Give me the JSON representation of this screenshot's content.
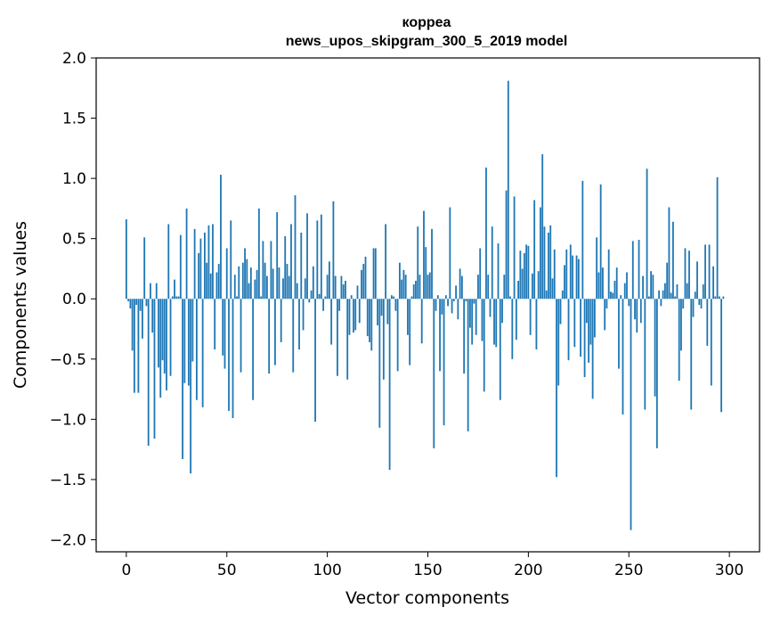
{
  "chart_data": {
    "type": "bar",
    "title": "коррea",
    "subtitle": "news_upos_skipgram_300_5_2019 model",
    "xlabel": "Vector components",
    "ylabel": "Components values",
    "xlim": [
      -15,
      315
    ],
    "ylim": [
      -2.1,
      2.0
    ],
    "xticks": [
      0,
      50,
      100,
      150,
      200,
      250,
      300
    ],
    "yticks": [
      2.0,
      1.5,
      1.0,
      0.5,
      0.0,
      -0.5,
      -1.0,
      -1.5,
      -2.0
    ],
    "ytick_labels": [
      "2.0",
      "1.5",
      "1.0",
      "0.5",
      "0.0",
      "−0.5",
      "−1.0",
      "−1.5",
      "−2.0"
    ],
    "bar_color": "#1f77b4",
    "values": [
      0.66,
      -0.02,
      -0.08,
      -0.43,
      -0.78,
      -0.05,
      -0.78,
      -0.1,
      -0.33,
      0.51,
      -0.06,
      -1.22,
      0.13,
      -0.28,
      -1.16,
      0.13,
      -0.57,
      -0.82,
      -0.51,
      -0.62,
      -0.76,
      0.62,
      -0.64,
      0.02,
      0.16,
      0.02,
      0.02,
      0.53,
      -1.33,
      -0.7,
      0.75,
      -0.72,
      -1.45,
      -0.52,
      0.58,
      -0.84,
      0.38,
      0.5,
      -0.9,
      0.55,
      0.3,
      0.61,
      0.21,
      0.62,
      -0.42,
      0.22,
      0.29,
      1.03,
      -0.47,
      -0.58,
      0.42,
      -0.93,
      0.65,
      -0.99,
      0.2,
      0.02,
      0.27,
      -0.61,
      0.3,
      0.42,
      0.33,
      0.13,
      0.26,
      -0.84,
      0.16,
      0.24,
      0.75,
      0.02,
      0.48,
      0.3,
      0.19,
      -0.62,
      0.48,
      0.25,
      -0.55,
      0.72,
      0.26,
      -0.36,
      0.17,
      0.52,
      0.29,
      0.19,
      0.62,
      -0.61,
      0.86,
      0.13,
      -0.42,
      0.55,
      -0.26,
      0.17,
      0.71,
      -0.03,
      0.07,
      0.27,
      -1.02,
      0.65,
      0.04,
      0.7,
      -0.1,
      0.02,
      0.2,
      0.31,
      -0.38,
      0.81,
      0.19,
      -0.64,
      -0.1,
      0.19,
      0.12,
      0.15,
      -0.67,
      -0.3,
      0.03,
      -0.28,
      -0.26,
      0.11,
      -0.2,
      0.24,
      0.29,
      0.35,
      -0.31,
      -0.36,
      -0.43,
      0.42,
      0.42,
      -0.22,
      -1.07,
      -0.14,
      -0.67,
      0.62,
      -0.21,
      -1.42,
      0.03,
      0.02,
      -0.1,
      -0.6,
      0.3,
      0.16,
      0.24,
      0.2,
      -0.3,
      -0.55,
      0.02,
      0.12,
      0.15,
      0.6,
      0.2,
      -0.37,
      0.73,
      0.43,
      0.2,
      0.22,
      0.58,
      -1.24,
      -0.1,
      0.03,
      -0.6,
      -0.13,
      -1.05,
      0.03,
      -0.06,
      0.76,
      -0.12,
      -0.02,
      0.11,
      -0.17,
      0.25,
      0.19,
      -0.62,
      -0.02,
      -1.1,
      -0.24,
      -0.38,
      -0.04,
      -0.3,
      0.2,
      0.42,
      -0.35,
      -0.77,
      1.09,
      0.2,
      -0.15,
      0.6,
      -0.38,
      -0.4,
      0.46,
      -0.84,
      -0.2,
      0.2,
      0.9,
      1.81,
      0.02,
      -0.5,
      0.85,
      -0.34,
      0.15,
      0.4,
      0.25,
      0.38,
      0.45,
      0.44,
      -0.3,
      0.21,
      0.82,
      -0.42,
      0.23,
      0.76,
      1.2,
      0.6,
      0.07,
      0.55,
      0.61,
      0.17,
      0.41,
      -1.48,
      -0.72,
      -0.21,
      0.07,
      0.28,
      0.41,
      -0.51,
      0.45,
      0.36,
      -0.4,
      0.36,
      0.33,
      -0.48,
      0.98,
      -0.65,
      -0.2,
      -0.53,
      -0.38,
      -0.83,
      -0.32,
      0.51,
      0.22,
      0.95,
      0.26,
      -0.26,
      -0.08,
      0.41,
      0.06,
      0.05,
      0.15,
      0.26,
      -0.58,
      0.03,
      -0.96,
      0.13,
      0.22,
      -0.06,
      -1.92,
      0.48,
      -0.17,
      -0.28,
      0.49,
      -0.2,
      0.19,
      -0.92,
      1.08,
      0.02,
      0.23,
      0.2,
      -0.81,
      -1.24,
      0.07,
      -0.06,
      0.07,
      0.13,
      0.3,
      0.76,
      0.05,
      0.64,
      0.02,
      0.12,
      -0.68,
      -0.43,
      -0.08,
      0.42,
      0.13,
      0.4,
      -0.92,
      -0.15,
      0.06,
      0.31,
      -0.05,
      -0.08,
      0.12,
      0.45,
      -0.39,
      0.45,
      -0.72,
      0.27,
      0.02,
      1.01,
      0.02,
      -0.94,
      0.02
    ]
  }
}
